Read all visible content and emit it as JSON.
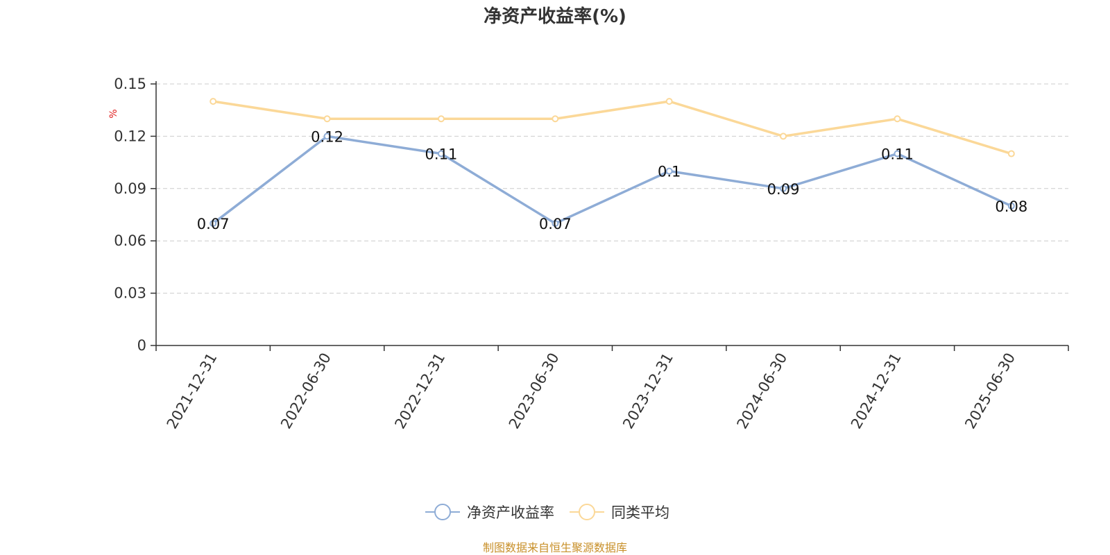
{
  "chart_data": {
    "type": "line",
    "title": "净资产收益率(%)",
    "ylabel": "%",
    "categories": [
      "2021-12-31",
      "2022-06-30",
      "2022-12-31",
      "2023-06-30",
      "2023-12-31",
      "2024-06-30",
      "2024-12-31",
      "2025-06-30"
    ],
    "series": [
      {
        "name": "净资产收益率",
        "color": "#8eacd6",
        "values": [
          0.07,
          0.12,
          0.11,
          0.07,
          0.1,
          0.09,
          0.11,
          0.08
        ],
        "labels": [
          "0.07",
          "0.12",
          "0.11",
          "0.07",
          "0.1",
          "0.09",
          "0.11",
          "0.08"
        ]
      },
      {
        "name": "同类平均",
        "color": "#fbd898",
        "values": [
          0.14,
          0.13,
          0.13,
          0.13,
          0.14,
          0.12,
          0.13,
          0.11
        ]
      }
    ],
    "ylim": [
      0,
      0.15
    ],
    "yticks": [
      "0",
      "0.03",
      "0.06",
      "0.09",
      "0.12",
      "0.15"
    ],
    "grid": true,
    "legend_position": "bottom-center"
  },
  "source_note": "制图数据来自恒生聚源数据库",
  "colors": {
    "unit": "#e02020",
    "source": "#c8902a"
  }
}
